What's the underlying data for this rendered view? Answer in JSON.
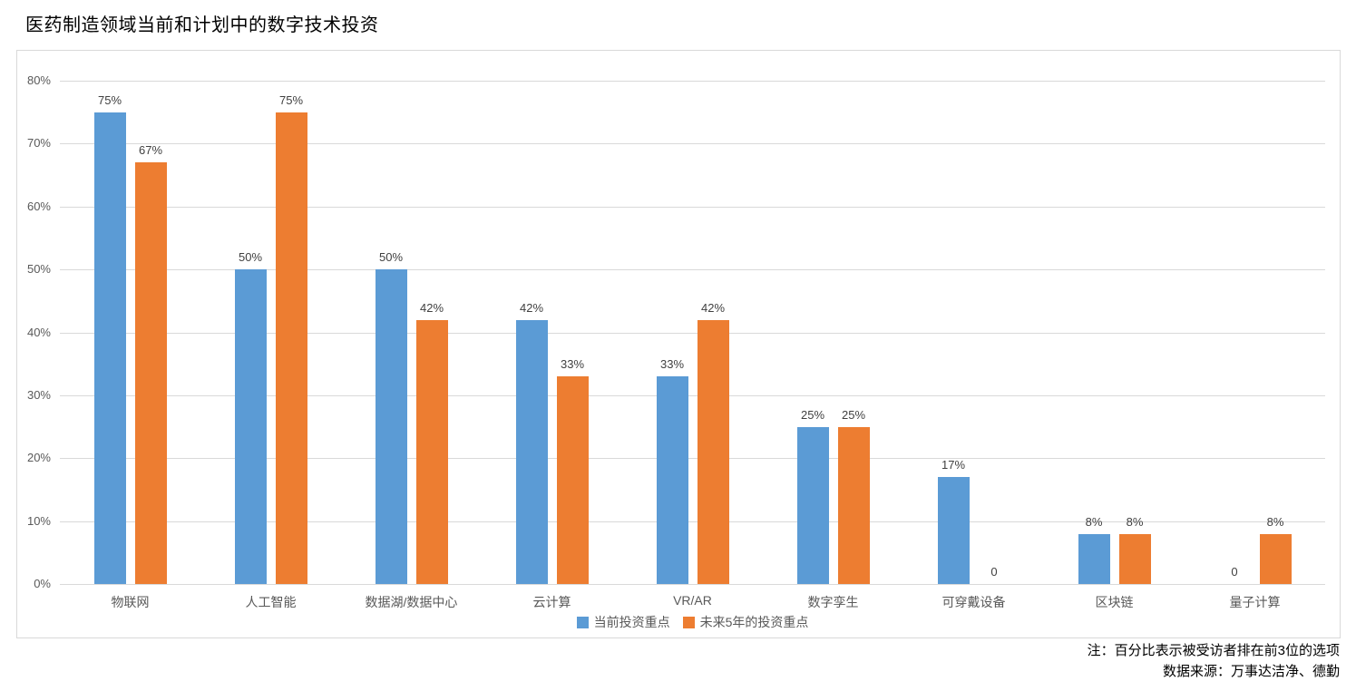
{
  "title": "医药制造领域当前和计划中的数字技术投资",
  "notes": {
    "line1": "注：百分比表示被受访者排在前3位的选项",
    "line2": "数据来源：万事达洁净、德勤"
  },
  "colors": {
    "series_current": "#5B9BD5",
    "series_future": "#ED7D31",
    "gridline": "#D9D9D9",
    "axis_text": "#595959",
    "value_label_text": "#404040"
  },
  "chart_data": {
    "type": "bar",
    "title": "医药制造领域当前和计划中的数字技术投资",
    "categories": [
      "物联网",
      "人工智能",
      "数据湖/数据中心",
      "云计算",
      "VR/AR",
      "数字孪生",
      "可穿戴设备",
      "区块链",
      "量子计算"
    ],
    "series": [
      {
        "name": "当前投资重点",
        "color": "#5B9BD5",
        "values": [
          75,
          50,
          50,
          42,
          33,
          25,
          17,
          8,
          0
        ],
        "labels": [
          "75%",
          "50%",
          "50%",
          "42%",
          "33%",
          "25%",
          "17%",
          "8%",
          "0"
        ]
      },
      {
        "name": "未来5年的投资重点",
        "color": "#ED7D31",
        "values": [
          67,
          75,
          42,
          33,
          42,
          25,
          0,
          8,
          8
        ],
        "labels": [
          "67%",
          "75%",
          "42%",
          "33%",
          "42%",
          "25%",
          "0",
          "8%",
          "8%"
        ]
      }
    ],
    "ylabel": "",
    "xlabel": "",
    "ylim": [
      0,
      80
    ],
    "ytick_step": 10,
    "ytick_labels": [
      "0%",
      "10%",
      "20%",
      "30%",
      "40%",
      "50%",
      "60%",
      "70%",
      "80%"
    ],
    "grid": true,
    "legend_position": "bottom"
  }
}
